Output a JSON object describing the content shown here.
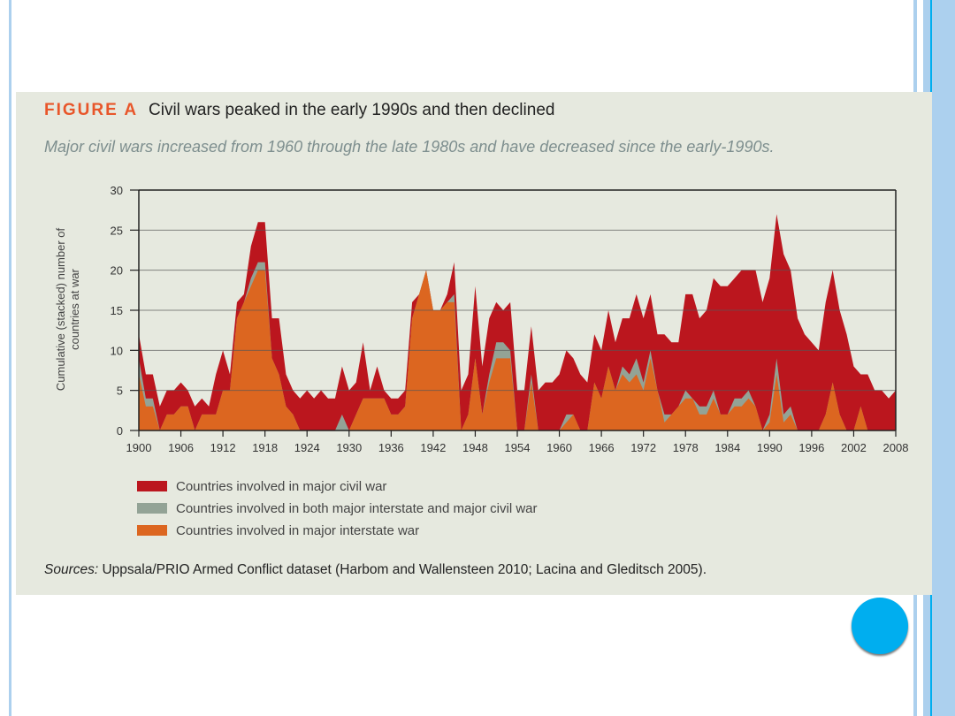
{
  "figure": {
    "label": "FIGURE A",
    "title": "Civil wars peaked in the early 1990s and then declined",
    "subtitle": "Major civil wars increased from 1960 through the late 1980s and have decreased since the early-1990s.",
    "sources_label": "Sources:",
    "sources_text": " Uppsala/PRIO Armed Conflict dataset (Harbom and Wallensteen 2010; Lacina and Gleditsch 2005)."
  },
  "chart_data": {
    "type": "area",
    "stacked": true,
    "ylabel": "Cumulative (stacked) number of countries at war",
    "ylim": [
      0,
      30
    ],
    "yticks": [
      0,
      5,
      10,
      15,
      20,
      25,
      30
    ],
    "xlim": [
      1900,
      2008
    ],
    "xticks": [
      1900,
      1906,
      1912,
      1918,
      1924,
      1930,
      1936,
      1942,
      1948,
      1954,
      1960,
      1966,
      1972,
      1978,
      1984,
      1990,
      1996,
      2002,
      2008
    ],
    "grid": true,
    "legend_position": "bottom",
    "x_start": 1900,
    "series": [
      {
        "name": "Countries involved in major interstate war",
        "color": "#dc6620",
        "values": [
          7,
          3,
          3,
          0,
          2,
          2,
          3,
          3,
          0,
          2,
          2,
          2,
          5,
          5,
          14,
          16,
          18,
          20,
          20,
          9,
          7,
          3,
          2,
          0,
          0,
          0,
          0,
          0,
          0,
          0,
          0,
          2,
          4,
          4,
          4,
          4,
          2,
          2,
          3,
          14,
          17,
          20,
          15,
          15,
          16,
          16,
          0,
          2,
          9,
          2,
          6,
          9,
          9,
          9,
          0,
          0,
          6,
          0,
          0,
          0,
          0,
          1,
          2,
          0,
          0,
          6,
          4,
          8,
          5,
          7,
          6,
          7,
          5,
          9,
          5,
          1,
          2,
          3,
          4,
          4,
          2,
          2,
          4,
          2,
          2,
          3,
          3,
          4,
          3,
          0,
          1,
          7,
          1,
          2,
          0,
          0,
          0,
          0,
          2,
          6,
          2,
          0,
          0,
          3,
          0,
          0,
          0,
          0,
          0
        ]
      },
      {
        "name": "Countries involved in both major interstate and major civil war",
        "color": "#93a396",
        "values": [
          2,
          1,
          1,
          0,
          0,
          0,
          0,
          0,
          0,
          0,
          0,
          0,
          0,
          0,
          0,
          0,
          1,
          1,
          1,
          0,
          0,
          0,
          0,
          0,
          0,
          0,
          0,
          0,
          0,
          2,
          0,
          0,
          0,
          0,
          0,
          0,
          0,
          0,
          0,
          0,
          0,
          0,
          0,
          0,
          0,
          1,
          0,
          0,
          0,
          0,
          1,
          2,
          2,
          1,
          0,
          0,
          1,
          0,
          0,
          0,
          0,
          1,
          0,
          0,
          0,
          0,
          0,
          0,
          0,
          1,
          1,
          2,
          1,
          1,
          0,
          1,
          0,
          0,
          1,
          0,
          1,
          1,
          1,
          0,
          0,
          1,
          1,
          1,
          0,
          0,
          1,
          2,
          1,
          1,
          0,
          0,
          0,
          0,
          0,
          0,
          0,
          0,
          0,
          0,
          0,
          0,
          0,
          0,
          0
        ]
      },
      {
        "name": "Countries involved in major civil war",
        "color": "#bb161e",
        "values": [
          3,
          3,
          3,
          3,
          3,
          3,
          3,
          2,
          3,
          2,
          1,
          5,
          5,
          2,
          2,
          1,
          4,
          5,
          5,
          5,
          7,
          4,
          3,
          4,
          5,
          4,
          5,
          4,
          4,
          6,
          5,
          4,
          7,
          1,
          4,
          1,
          2,
          2,
          2,
          2,
          0,
          0,
          0,
          0,
          1,
          4,
          5,
          5,
          9,
          6,
          7,
          5,
          4,
          6,
          5,
          5,
          6,
          5,
          6,
          6,
          7,
          8,
          7,
          7,
          6,
          6,
          6,
          7,
          6,
          6,
          7,
          8,
          8,
          7,
          7,
          10,
          9,
          8,
          12,
          13,
          11,
          12,
          14,
          16,
          16,
          15,
          16,
          15,
          17,
          16,
          17,
          18,
          20,
          17,
          14,
          12,
          11,
          10,
          14,
          14,
          13,
          12,
          8,
          4,
          7,
          5,
          5,
          4,
          5
        ]
      }
    ]
  }
}
